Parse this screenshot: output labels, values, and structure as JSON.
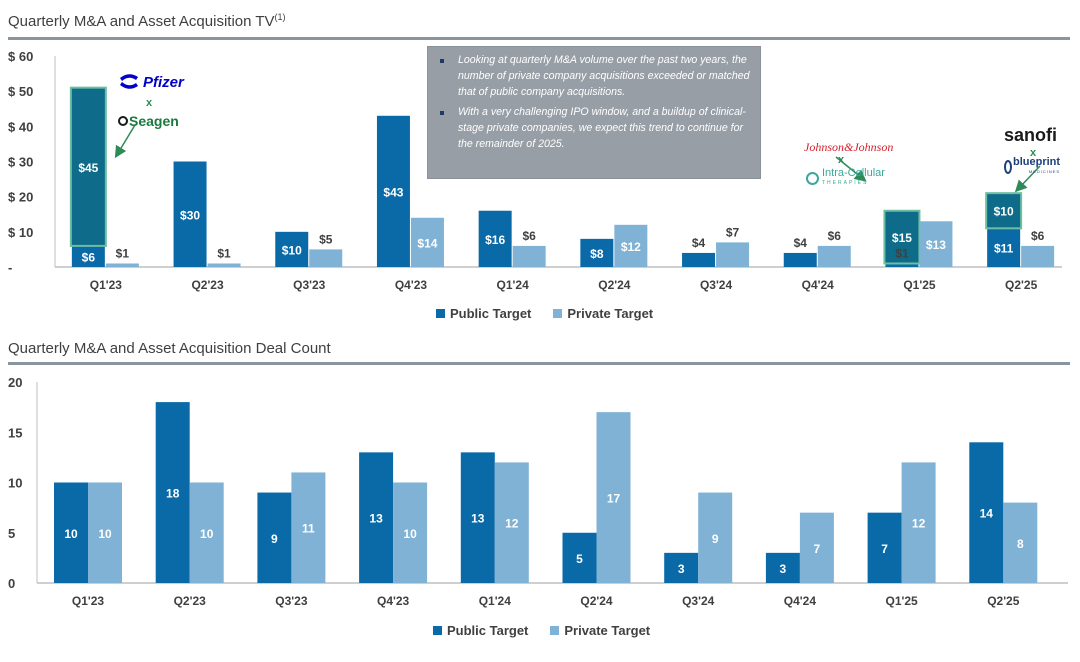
{
  "colors": {
    "public": "#0a6aa8",
    "private": "#7fb2d5",
    "highlight_fill": "#0e6b8a",
    "highlight_border": "#6cbfa0",
    "axis": "#bfbfbf",
    "text": "#404040",
    "arrow": "#2e8b57"
  },
  "chart_data": [
    {
      "type": "bar",
      "title": "Quarterly M&A and Asset Acquisition TV",
      "title_footnote": "(1)",
      "categories": [
        "Q1'23",
        "Q2'23",
        "Q3'23",
        "Q4'23",
        "Q1'24",
        "Q2'24",
        "Q3'24",
        "Q4'24",
        "Q1'25",
        "Q2'25"
      ],
      "ylim": [
        0,
        60
      ],
      "yticks": [
        0,
        10,
        20,
        30,
        40,
        50,
        60
      ],
      "ytick_labels": [
        "-",
        "$ 10",
        "$ 20",
        "$ 30",
        "$ 40",
        "$ 50",
        "$ 60"
      ],
      "series": [
        {
          "name": "Public Target",
          "values": [
            6,
            30,
            10,
            43,
            16,
            8,
            4,
            4,
            1,
            11
          ],
          "labels": [
            "$6",
            "$30",
            "$10",
            "$43",
            "$16",
            "$8",
            "$4",
            "$4",
            "$1",
            "$11"
          ]
        },
        {
          "name": "Private Target",
          "values": [
            1,
            1,
            5,
            14,
            6,
            12,
            7,
            6,
            13,
            6
          ],
          "labels": [
            "$1",
            "$1",
            "$5",
            "$14",
            "$6",
            "$12",
            "$7",
            "$6",
            "$13",
            "$6"
          ]
        }
      ],
      "highlighted_deals": [
        {
          "category": "Q1'23",
          "value": 45,
          "label": "$45",
          "acquirer": "Pfizer",
          "target": "Seagen"
        },
        {
          "category": "Q1'25",
          "value": 15,
          "label": "$15",
          "acquirer": "Johnson&Johnson",
          "target": "Intra-Cellular Therapies"
        },
        {
          "category": "Q2'25",
          "value": 10,
          "label": "$10",
          "acquirer": "sanofi",
          "target": "blueprint medicines"
        }
      ],
      "legend": [
        "Public Target",
        "Private Target"
      ],
      "legend_position": "bottom",
      "grid": false
    },
    {
      "type": "bar",
      "title": "Quarterly M&A and Asset Acquisition Deal Count",
      "categories": [
        "Q1'23",
        "Q2'23",
        "Q3'23",
        "Q4'23",
        "Q1'24",
        "Q2'24",
        "Q3'24",
        "Q4'24",
        "Q1'25",
        "Q2'25"
      ],
      "ylim": [
        0,
        20
      ],
      "yticks": [
        0,
        5,
        10,
        15,
        20
      ],
      "ytick_labels": [
        "0",
        "5",
        "10",
        "15",
        "20"
      ],
      "series": [
        {
          "name": "Public Target",
          "values": [
            10,
            18,
            9,
            13,
            13,
            5,
            3,
            3,
            7,
            14
          ]
        },
        {
          "name": "Private Target",
          "values": [
            10,
            10,
            11,
            10,
            12,
            17,
            9,
            7,
            12,
            8
          ]
        }
      ],
      "legend": [
        "Public Target",
        "Private Target"
      ],
      "legend_position": "bottom",
      "grid": false
    }
  ],
  "callout": {
    "bullets": [
      "Looking at quarterly M&A volume over the past two years, the number of private company acquisitions exceeded or matched that of public company acquisitions.",
      "With a very challenging IPO window, and a buildup of clinical-stage private companies, we expect this trend to continue for the remainder of 2025."
    ]
  },
  "logos": {
    "pfizer": "Pfizer",
    "seagen": "Seagen",
    "jnj": "Johnson&Johnson",
    "intracellular": "Intra-Cellular",
    "intracellular_sub": "THERAPIES",
    "sanofi": "sanofi",
    "blueprint": "blueprint",
    "blueprint_sub": "MEDICINES",
    "x": "x"
  }
}
